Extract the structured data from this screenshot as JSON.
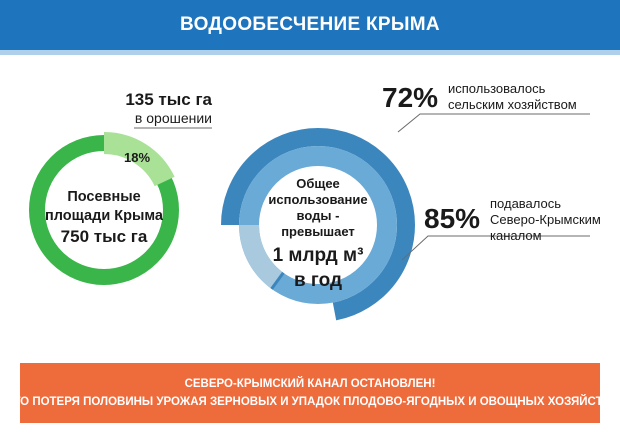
{
  "header": {
    "title": "ВОДООБЕСЧЕНИЕ КРЫМА"
  },
  "colors": {
    "header_bg": "#1e75bd",
    "header_bar": "#aed0ea",
    "green": "#3ab54a",
    "green_light": "#a9e196",
    "blue_dark": "#3c86be",
    "blue_mid": "#6aaad6",
    "blue_light": "#a8c9de",
    "banner": "#ee6b3c"
  },
  "chart_data": [
    {
      "type": "pie",
      "variant": "donut",
      "center_label": [
        "Посевные",
        "площади Крыма",
        "750 тыс га"
      ],
      "slices": [
        {
          "label": "18%",
          "value": 18,
          "color": "#a9e196"
        },
        {
          "label": "",
          "value": 82,
          "color": "#3ab54a"
        }
      ],
      "annotation": {
        "value": "135 тыс га",
        "caption": "в орошении"
      }
    },
    {
      "type": "pie",
      "variant": "donut",
      "center_label": [
        "Общее",
        "использование воды -",
        "превышает",
        "1 млрд м³",
        "в год"
      ],
      "rings": [
        {
          "name": "outer",
          "value": 72,
          "color_filled": "#3c86be"
        },
        {
          "name": "inner",
          "value": 85,
          "color_filled": "#6aaad6",
          "color_rest": "#a8c9de"
        }
      ],
      "annotations": [
        {
          "pct": "72%",
          "lines": [
            "использовалось",
            "сельским хозяйством"
          ]
        },
        {
          "pct": "85%",
          "lines": [
            "подавалось",
            "Северо-Крымским",
            "каналом"
          ]
        }
      ]
    }
  ],
  "labels": {
    "green": {
      "value": "135 тыс га",
      "caption": "в орошении",
      "slice_pct": "18%",
      "center1": "Посевные",
      "center2": "площади Крыма",
      "center3": "750 тыс га"
    },
    "blue": {
      "center1": "Общее",
      "center2": "использование воды -",
      "center3": "превышает",
      "center4": "1 млрд м³",
      "center5": "в год",
      "pct1": "72%",
      "note1_1": "использовалось",
      "note1_2": "сельским хозяйством",
      "pct2": "85%",
      "note2_1": "подавалось",
      "note2_2": "Северо-Крымским",
      "note2_3": "каналом"
    }
  },
  "banner": {
    "line1": "СЕВЕРО-КРЫМСКИЙ КАНАЛ ОСТАНОВЛЕН!",
    "line2": "ЭТО ПОТЕРЯ ПОЛОВИНЫ УРОЖАЯ ЗЕРНОВЫХ И УПАДОК ПЛОДОВО-ЯГОДНЫХ И ОВОЩНЫХ ХОЗЯЙСТВ!"
  }
}
